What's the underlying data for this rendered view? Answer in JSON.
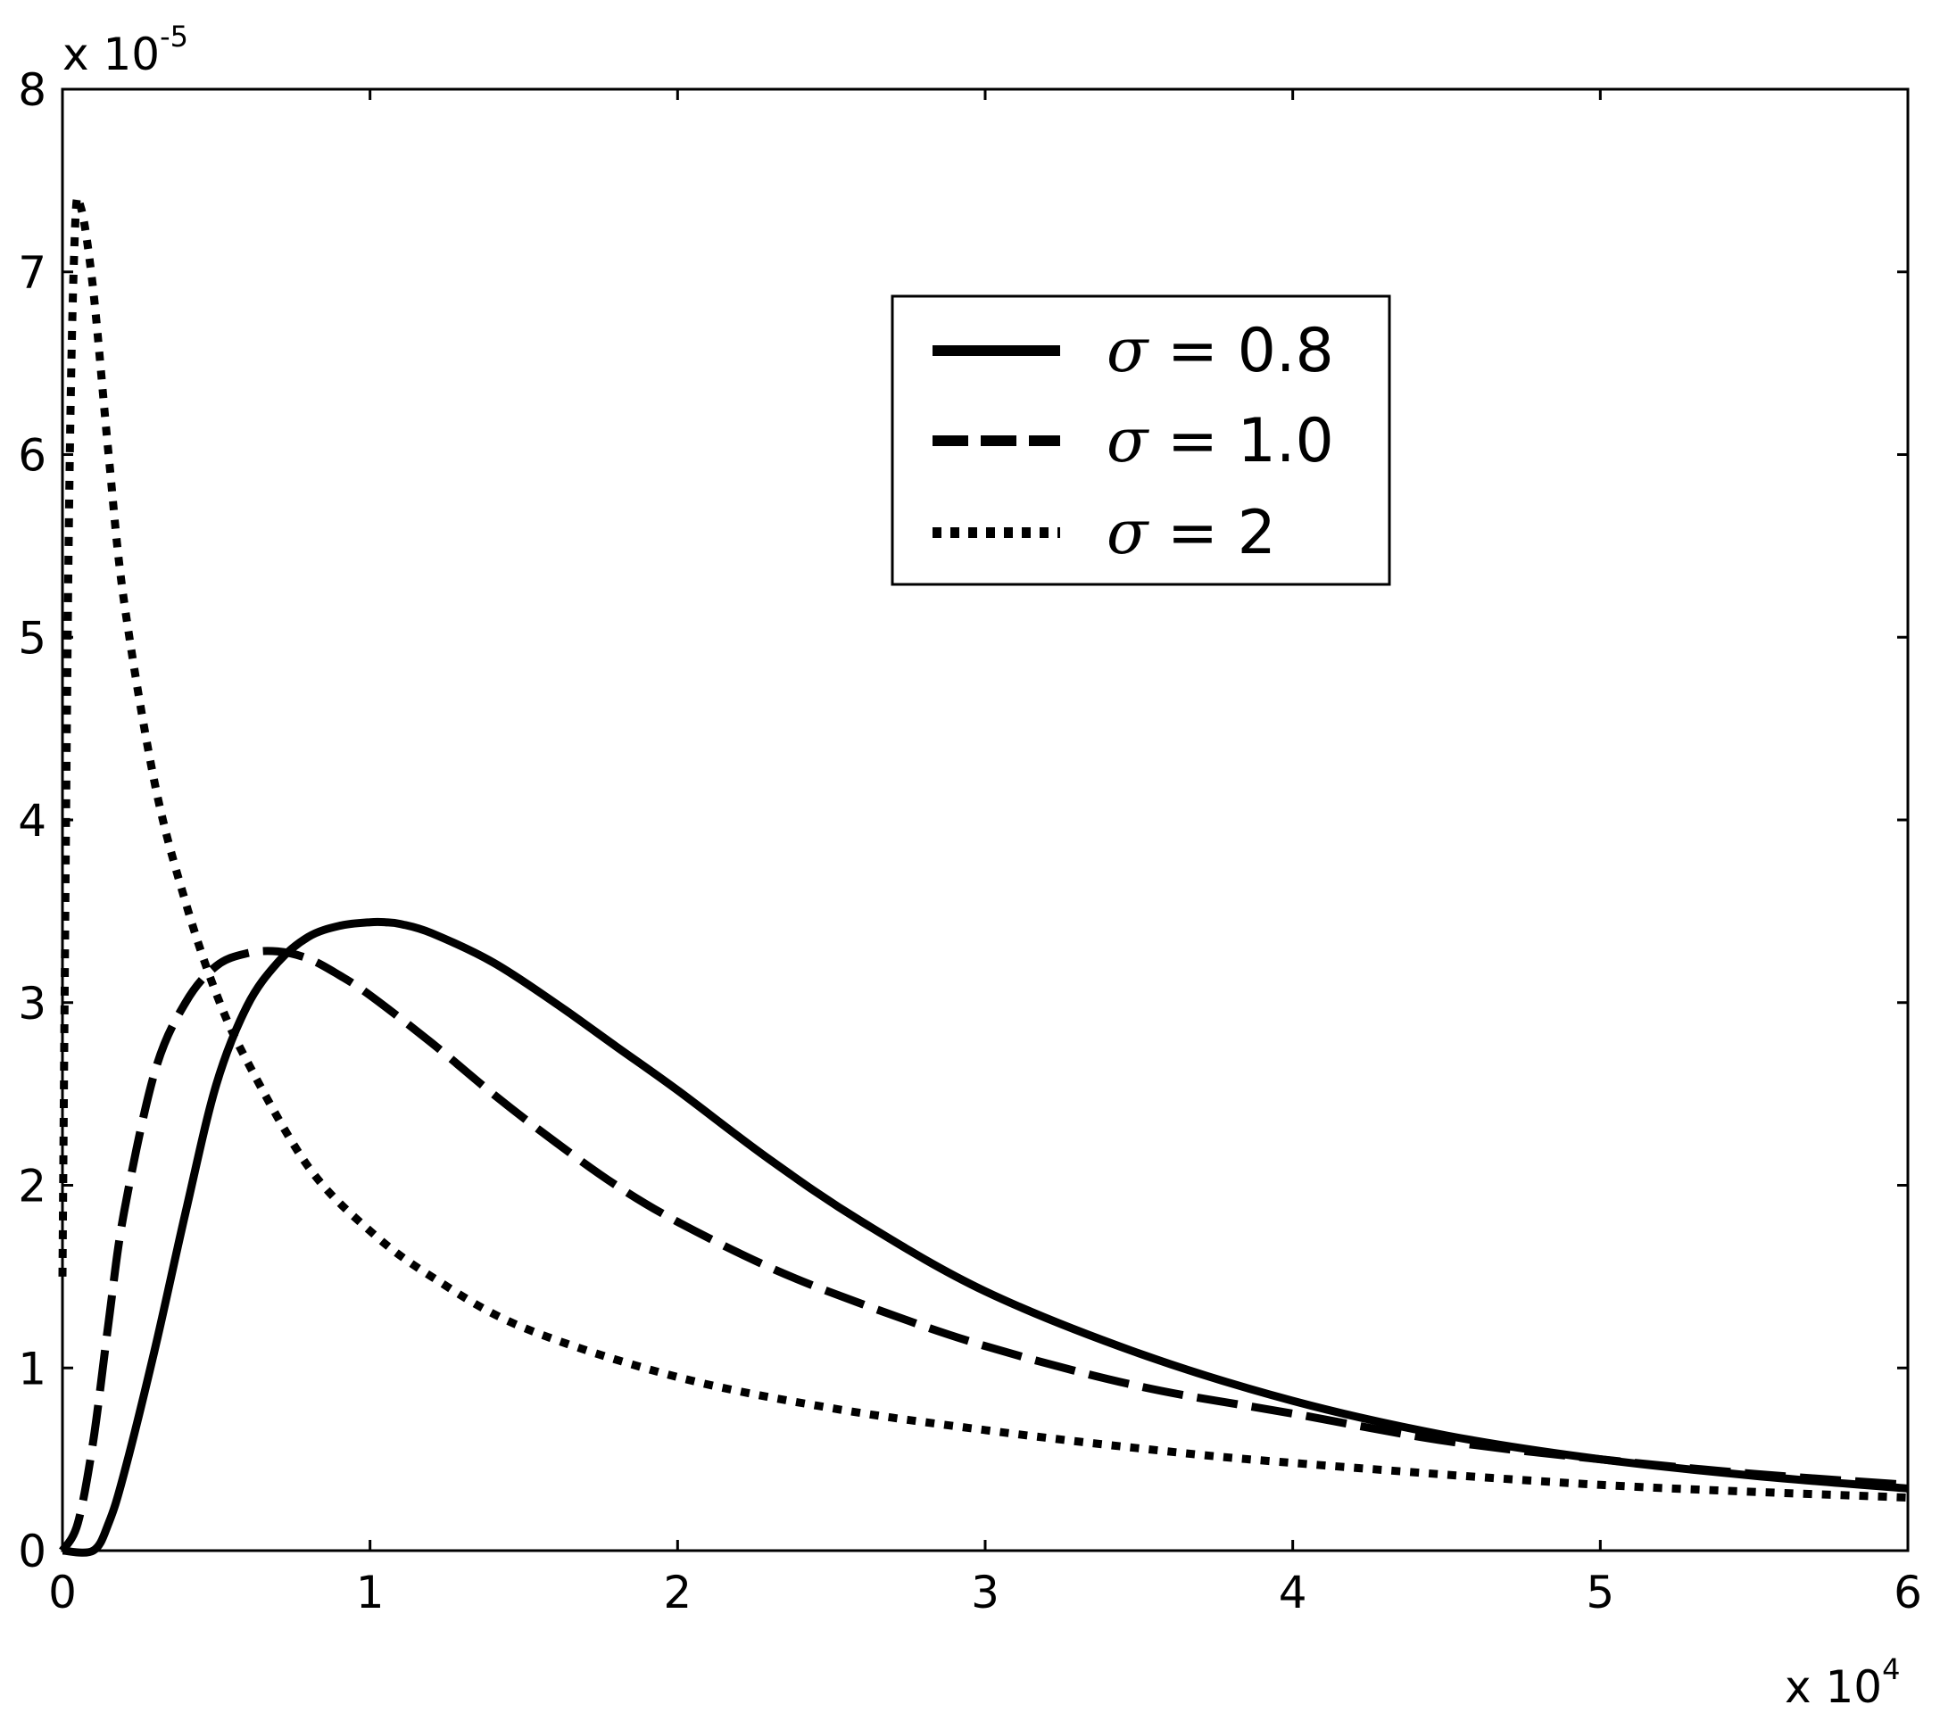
{
  "chart_data": {
    "type": "line",
    "x_multiplier": {
      "prefix": "x 10",
      "exponent": "4"
    },
    "y_multiplier": {
      "prefix": "x 10",
      "exponent": "-5"
    },
    "xlim": [
      0,
      6
    ],
    "ylim": [
      0,
      8
    ],
    "x_ticks": [
      0,
      1,
      2,
      3,
      4,
      5,
      6
    ],
    "y_ticks": [
      0,
      1,
      2,
      3,
      4,
      5,
      6,
      7,
      8
    ],
    "grid": false,
    "legend_position": "top-center-right",
    "series": [
      {
        "name": "σ = 0.8",
        "symbol": "σ",
        "label_rest": " = 0.8",
        "style": "solid",
        "color": "#000000",
        "x": [
          0.0,
          0.1,
          0.15,
          0.2,
          0.3,
          0.4,
          0.5,
          0.6,
          0.7,
          0.8,
          0.9,
          1.0,
          1.05,
          1.1,
          1.2,
          1.4,
          1.6,
          1.8,
          2.0,
          2.3,
          2.6,
          3.0,
          3.5,
          4.0,
          4.5,
          5.0,
          5.5,
          6.0
        ],
        "y": [
          0.0,
          0.0,
          0.15,
          0.42,
          1.1,
          1.85,
          2.55,
          2.98,
          3.22,
          3.36,
          3.42,
          3.44,
          3.44,
          3.43,
          3.38,
          3.22,
          3.0,
          2.76,
          2.52,
          2.14,
          1.8,
          1.42,
          1.08,
          0.82,
          0.63,
          0.5,
          0.41,
          0.34
        ]
      },
      {
        "name": "σ = 1.0",
        "symbol": "σ",
        "label_rest": " = 1.0",
        "style": "dashed",
        "color": "#000000",
        "x": [
          0.0,
          0.05,
          0.1,
          0.15,
          0.2,
          0.3,
          0.4,
          0.5,
          0.6,
          0.7,
          0.8,
          0.9,
          1.0,
          1.2,
          1.4,
          1.6,
          1.8,
          2.0,
          2.3,
          2.6,
          3.0,
          3.5,
          4.0,
          4.5,
          5.0,
          5.5,
          6.0
        ],
        "y": [
          0.0,
          0.15,
          0.6,
          1.25,
          1.85,
          2.62,
          3.0,
          3.2,
          3.27,
          3.28,
          3.24,
          3.15,
          3.04,
          2.78,
          2.5,
          2.24,
          2.0,
          1.8,
          1.55,
          1.35,
          1.12,
          0.9,
          0.75,
          0.6,
          0.5,
          0.42,
          0.36
        ]
      },
      {
        "name": "σ = 2",
        "symbol": "σ",
        "label_rest": " = 2",
        "style": "dotted",
        "color": "#000000",
        "x": [
          0.0,
          0.02,
          0.04,
          0.06,
          0.1,
          0.15,
          0.2,
          0.3,
          0.4,
          0.5,
          0.6,
          0.8,
          1.0,
          1.2,
          1.5,
          2.0,
          2.5,
          3.0,
          3.5,
          4.0,
          5.0,
          6.0
        ],
        "y": [
          1.5,
          5.5,
          7.2,
          7.35,
          6.9,
          6.0,
          5.2,
          4.2,
          3.55,
          3.05,
          2.68,
          2.1,
          1.75,
          1.5,
          1.22,
          0.95,
          0.78,
          0.66,
          0.56,
          0.48,
          0.36,
          0.29
        ]
      }
    ]
  }
}
